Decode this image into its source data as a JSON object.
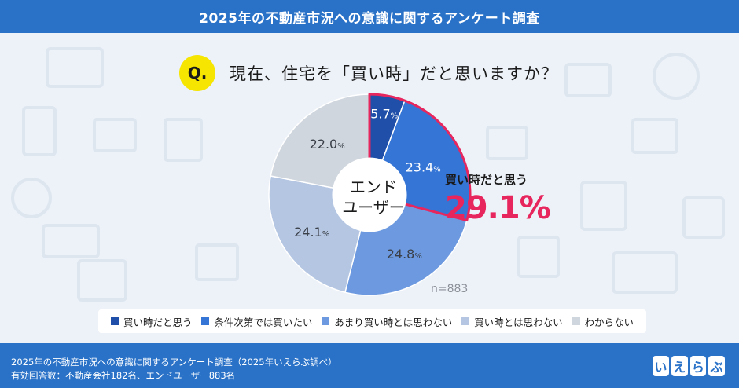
{
  "header": {
    "title": "2025年の不動産市況への意識に関するアンケート調査"
  },
  "question": {
    "badge": "Q.",
    "text": "現在、住宅を「買い時」だと思いますか？"
  },
  "center": {
    "line1": "エンド",
    "line2": "ユーザー"
  },
  "sample": "n=883",
  "callout": {
    "label": "買い時だと思う",
    "value": "29.1%"
  },
  "chart_data": {
    "type": "pie",
    "title": "現在、住宅を「買い時」だと思いますか？",
    "variant": "donut",
    "categories": [
      "買い時だと思う",
      "条件次第では買いたい",
      "あまり買い時とは思わない",
      "買い時とは思わない",
      "わからない"
    ],
    "values": [
      5.7,
      23.4,
      24.8,
      24.1,
      22.0
    ],
    "value_labels": [
      {
        "num": "5.7",
        "unit": "%"
      },
      {
        "num": "23.4",
        "unit": "%"
      },
      {
        "num": "24.8",
        "unit": "%"
      },
      {
        "num": "24.1",
        "unit": "%"
      },
      {
        "num": "22.0",
        "unit": "%"
      }
    ],
    "colors": [
      "#1f4fa8",
      "#3575d6",
      "#6c99df",
      "#b4c6e2",
      "#d0d6de"
    ],
    "highlight": {
      "label": "買い時だと思う",
      "value": "29.1%",
      "color": "#e8265e"
    },
    "legend_position": "bottom"
  },
  "legend": [
    {
      "label": "買い時だと思う",
      "color": "#1f4fa8"
    },
    {
      "label": "条件次第では買いたい",
      "color": "#3575d6"
    },
    {
      "label": "あまり買い時とは思わない",
      "color": "#6c99df"
    },
    {
      "label": "買い時とは思わない",
      "color": "#b4c6e2"
    },
    {
      "label": "わからない",
      "color": "#d0d6de"
    }
  ],
  "footer": {
    "line1": "2025年の不動産市況への意識に関するアンケート調査（2025年いえらぶ調べ）",
    "line2": "有効回答数：不動産会社182名、エンドユーザー883名",
    "logo": [
      "い",
      "え",
      "ら",
      "ぶ"
    ]
  }
}
